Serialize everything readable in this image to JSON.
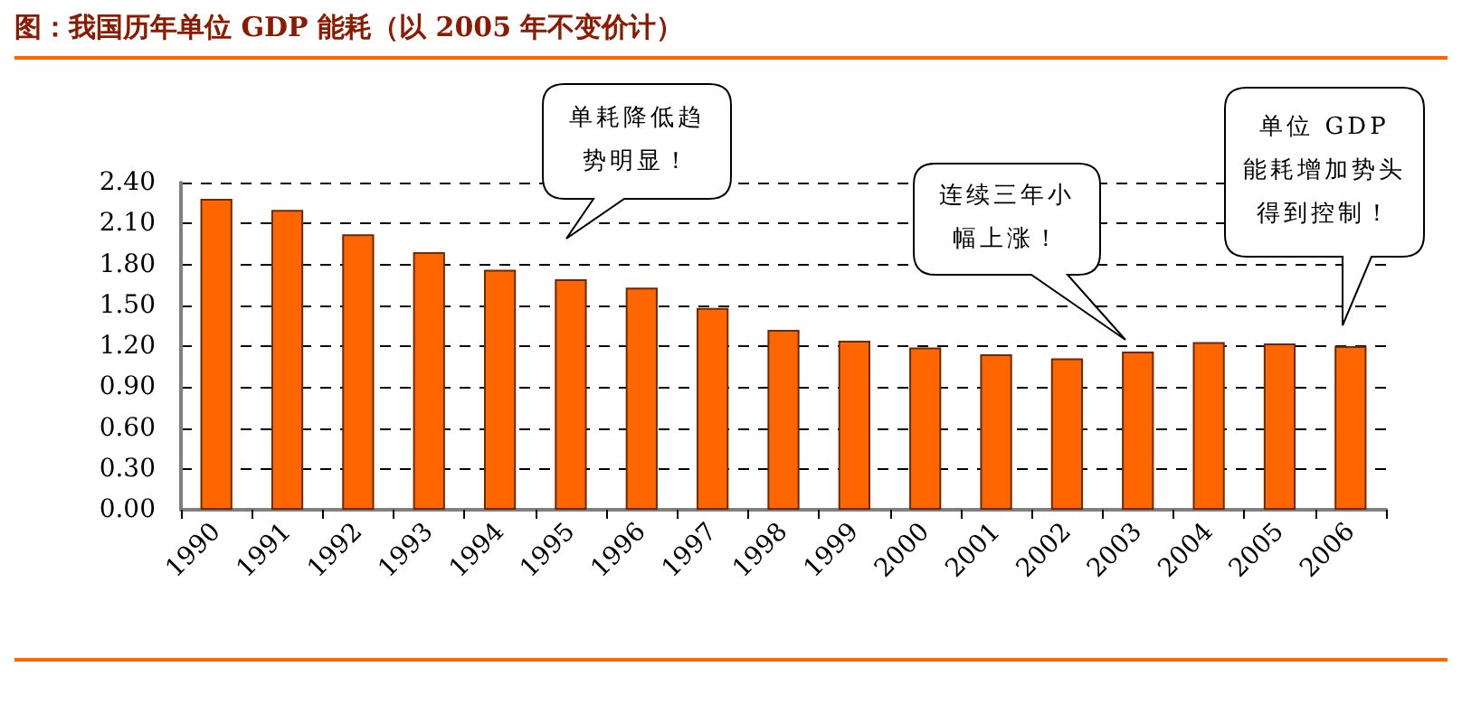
{
  "chart_data": {
    "type": "bar",
    "title": "图：我国历年单位 GDP 能耗（以 2005 年不变价计）",
    "categories": [
      "1990",
      "1991",
      "1992",
      "1993",
      "1994",
      "1995",
      "1996",
      "1997",
      "1998",
      "1999",
      "2000",
      "2001",
      "2002",
      "2003",
      "2004",
      "2005",
      "2006"
    ],
    "values": [
      2.28,
      2.2,
      2.02,
      1.89,
      1.76,
      1.69,
      1.63,
      1.48,
      1.32,
      1.24,
      1.19,
      1.14,
      1.11,
      1.16,
      1.23,
      1.22,
      1.2
    ],
    "color": "#ff6600",
    "ylim": [
      0,
      2.4
    ],
    "yticks": [
      {
        "value": 0,
        "label": "0.00"
      },
      {
        "value": 0.3,
        "label": "0.30"
      },
      {
        "value": 0.6,
        "label": "0.60"
      },
      {
        "value": 0.9,
        "label": "0.90"
      },
      {
        "value": 1.2,
        "label": "1.20"
      },
      {
        "value": 1.5,
        "label": "1.50"
      },
      {
        "value": 1.8,
        "label": "1.80"
      },
      {
        "value": 2.1,
        "label": "2.10"
      },
      {
        "value": 2.4,
        "label": "2.40"
      }
    ],
    "grid": "y",
    "annotations": [
      "单耗降低趋势明显！",
      "连续三年小幅上涨！",
      "单位 GDP 能耗增加势头得到控制！"
    ]
  }
}
